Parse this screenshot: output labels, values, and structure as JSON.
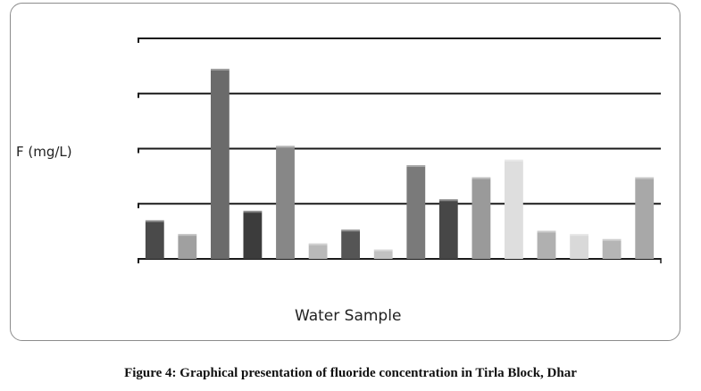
{
  "chart_data": {
    "type": "bar",
    "title": "",
    "xlabel": "Water Sample",
    "ylabel": "F (mg/L)",
    "ylim": [
      0,
      4
    ],
    "y_gridlines": [
      1,
      2,
      3,
      4
    ],
    "y_tick_labels_visible": false,
    "grid": true,
    "legend": "none",
    "values": [
      0.7,
      0.45,
      3.45,
      0.87,
      2.05,
      0.28,
      0.53,
      0.17,
      1.7,
      1.08,
      1.48,
      1.8,
      0.51,
      0.45,
      0.36,
      1.48
    ],
    "colors": [
      "#4a4a4a",
      "#a0a0a0",
      "#6b6b6b",
      "#3c3c3c",
      "#878787",
      "#b9b9b9",
      "#555555",
      "#c2c2c2",
      "#7a7a7a",
      "#474747",
      "#9a9a9a",
      "#dedede",
      "#b0b0b0",
      "#d9d9d9",
      "#b5b5b5",
      "#a8a8a8"
    ]
  },
  "caption": "Figure 4: Graphical presentation of fluoride concentration in Tirla Block, Dhar"
}
